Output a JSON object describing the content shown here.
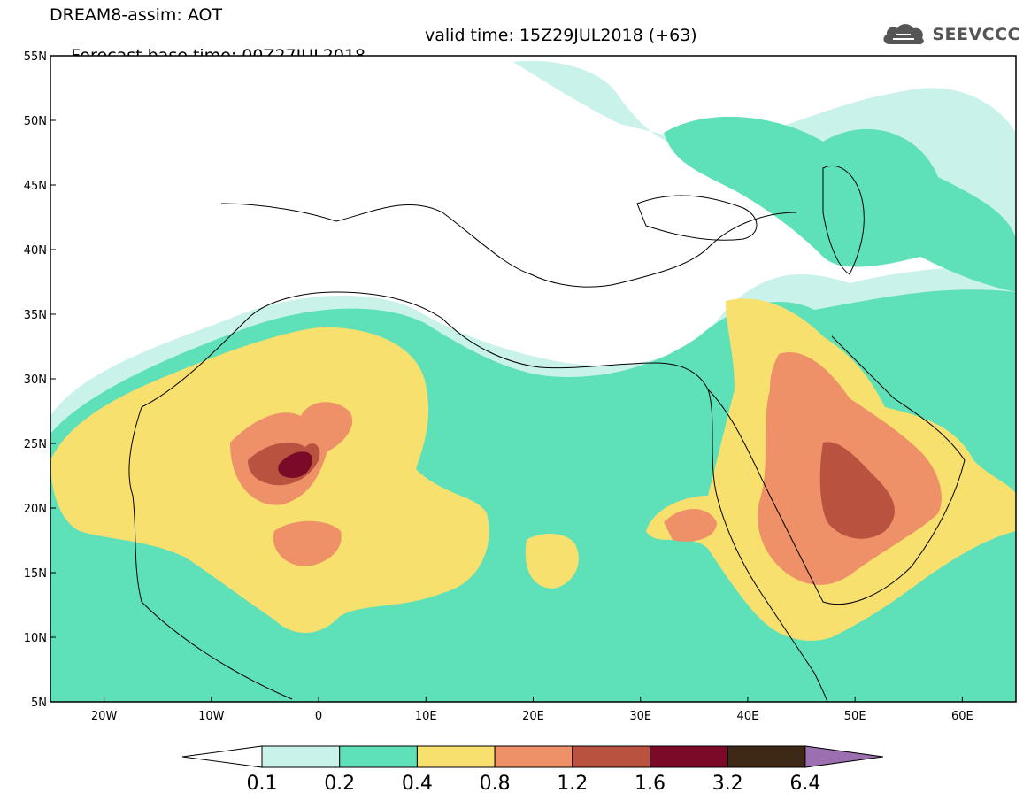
{
  "header": {
    "product": "DREAM8-assim: AOT",
    "base_time": "Forecast base time: 00Z27JUL2018",
    "valid_time": "valid time: 15Z29JUL2018 (+63)"
  },
  "logo": {
    "text": "SEEVCCC",
    "icon": "cloud-icon"
  },
  "map": {
    "lat_ticks": [
      "55N",
      "50N",
      "45N",
      "40N",
      "35N",
      "30N",
      "25N",
      "20N",
      "15N",
      "10N",
      "5N"
    ],
    "lon_ticks": [
      "20W",
      "10W",
      "0",
      "10E",
      "20E",
      "30E",
      "40E",
      "50E",
      "60E"
    ],
    "lon_range": [
      -25,
      65
    ],
    "lat_range": [
      5,
      55
    ],
    "colors": {
      "c01": "#c8f2ea",
      "c02": "#5ee0b8",
      "c04": "#f8e06e",
      "c08": "#ee9168",
      "c12": "#b9523f",
      "c16": "#7a0a28",
      "c32": "#3e2816",
      "c64": "#9b6fb0",
      "coast": "#000000"
    }
  },
  "colorbar": {
    "labels": [
      "0.1",
      "0.2",
      "0.4",
      "0.8",
      "1.2",
      "1.6",
      "3.2",
      "6.4"
    ],
    "colors": [
      "#c8f2ea",
      "#5ee0b8",
      "#f8e06e",
      "#ee9168",
      "#b9523f",
      "#7a0a28",
      "#3e2816"
    ],
    "under_color": "#ffffff",
    "over_color": "#9b6fb0"
  }
}
